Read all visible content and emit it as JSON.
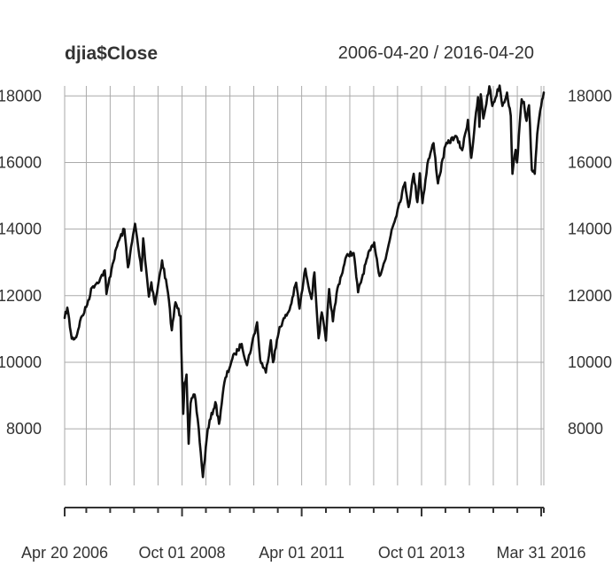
{
  "chart_data": {
    "type": "line",
    "title": "djia$Close",
    "subtitle": "2006-04-20 / 2016-04-20",
    "x_range": [
      "2006-04-20",
      "2016-04-20"
    ],
    "ylim": [
      6300,
      18300
    ],
    "grid": true,
    "y_ticks": [
      8000,
      10000,
      12000,
      14000,
      16000,
      18000
    ],
    "y_tick_labels_left": [
      "8000",
      "10000",
      "12000",
      "14000",
      "16000",
      "18000"
    ],
    "y_tick_labels_right": [
      "8000",
      "10000",
      "12000",
      "14000",
      "16000",
      "18000"
    ],
    "x_tick_labels": [
      {
        "date": "2006-04-20",
        "label": "Apr 20 2006"
      },
      {
        "date": "2008-10-01",
        "label": "Oct 01 2008"
      },
      {
        "date": "2011-04-01",
        "label": "Apr 01 2011"
      },
      {
        "date": "2013-10-01",
        "label": "Oct 01 2013"
      },
      {
        "date": "2016-03-31",
        "label": "Mar 31 2016"
      }
    ],
    "x_minor_ticks": [
      "2006-04-20",
      "2006-10-02",
      "2007-04-02",
      "2007-10-01",
      "2008-04-01",
      "2008-10-01",
      "2009-04-01",
      "2009-10-01",
      "2010-04-01",
      "2010-10-01",
      "2011-04-01",
      "2011-10-03",
      "2012-04-02",
      "2012-10-01",
      "2013-04-01",
      "2013-10-01",
      "2014-04-01",
      "2014-10-01",
      "2015-04-01",
      "2015-10-01",
      "2016-03-31",
      "2016-04-20"
    ],
    "series": [
      {
        "color": "#111111",
        "points": [
          [
            "2006-04-20",
            11330
          ],
          [
            "2006-05-10",
            11640
          ],
          [
            "2006-06-13",
            10710
          ],
          [
            "2006-07-17",
            10750
          ],
          [
            "2006-08-15",
            11230
          ],
          [
            "2006-10-02",
            11660
          ],
          [
            "2006-11-15",
            12250
          ],
          [
            "2007-01-15",
            12500
          ],
          [
            "2007-02-20",
            12760
          ],
          [
            "2007-03-05",
            12050
          ],
          [
            "2007-04-20",
            12950
          ],
          [
            "2007-06-01",
            13600
          ],
          [
            "2007-07-19",
            14000
          ],
          [
            "2007-08-16",
            12850
          ],
          [
            "2007-10-09",
            14160
          ],
          [
            "2007-11-26",
            12750
          ],
          [
            "2007-12-10",
            13720
          ],
          [
            "2008-01-22",
            11970
          ],
          [
            "2008-02-10",
            12400
          ],
          [
            "2008-03-10",
            11740
          ],
          [
            "2008-05-02",
            13060
          ],
          [
            "2008-06-15",
            12100
          ],
          [
            "2008-07-15",
            10960
          ],
          [
            "2008-08-12",
            11800
          ],
          [
            "2008-09-19",
            11390
          ],
          [
            "2008-10-10",
            8450
          ],
          [
            "2008-10-20",
            9380
          ],
          [
            "2008-11-04",
            9630
          ],
          [
            "2008-11-20",
            7550
          ],
          [
            "2008-12-05",
            8770
          ],
          [
            "2009-01-05",
            9030
          ],
          [
            "2009-02-05",
            8000
          ],
          [
            "2009-03-09",
            6550
          ],
          [
            "2009-04-15",
            8000
          ],
          [
            "2009-06-12",
            8800
          ],
          [
            "2009-07-10",
            8150
          ],
          [
            "2009-08-20",
            9400
          ],
          [
            "2009-10-19",
            10100
          ],
          [
            "2009-11-10",
            10250
          ],
          [
            "2009-12-30",
            10550
          ],
          [
            "2010-02-08",
            9910
          ],
          [
            "2010-04-26",
            11200
          ],
          [
            "2010-05-20",
            10070
          ],
          [
            "2010-07-02",
            9690
          ],
          [
            "2010-08-09",
            10660
          ],
          [
            "2010-08-26",
            10000
          ],
          [
            "2010-10-15",
            11060
          ],
          [
            "2010-12-30",
            11580
          ],
          [
            "2011-02-18",
            12390
          ],
          [
            "2011-03-16",
            11610
          ],
          [
            "2011-04-29",
            12810
          ],
          [
            "2011-06-15",
            11900
          ],
          [
            "2011-07-07",
            12700
          ],
          [
            "2011-08-08",
            10720
          ],
          [
            "2011-09-01",
            11500
          ],
          [
            "2011-10-03",
            10650
          ],
          [
            "2011-10-27",
            12200
          ],
          [
            "2011-11-25",
            11230
          ],
          [
            "2011-12-30",
            12220
          ],
          [
            "2012-03-15",
            13250
          ],
          [
            "2012-05-01",
            13280
          ],
          [
            "2012-06-04",
            12100
          ],
          [
            "2012-08-15",
            13160
          ],
          [
            "2012-10-05",
            13600
          ],
          [
            "2012-11-15",
            12590
          ],
          [
            "2012-12-31",
            13100
          ],
          [
            "2013-02-15",
            13980
          ],
          [
            "2013-04-01",
            14580
          ],
          [
            "2013-05-28",
            15400
          ],
          [
            "2013-06-24",
            14660
          ],
          [
            "2013-08-02",
            15660
          ],
          [
            "2013-08-30",
            14810
          ],
          [
            "2013-09-18",
            15680
          ],
          [
            "2013-10-08",
            14780
          ],
          [
            "2013-11-15",
            15960
          ],
          [
            "2013-12-31",
            16580
          ],
          [
            "2014-02-03",
            15370
          ],
          [
            "2014-04-01",
            16500
          ],
          [
            "2014-06-15",
            16800
          ],
          [
            "2014-08-07",
            16370
          ],
          [
            "2014-09-19",
            17280
          ],
          [
            "2014-10-15",
            16140
          ],
          [
            "2014-12-05",
            17960
          ],
          [
            "2014-12-16",
            17070
          ],
          [
            "2014-12-26",
            18050
          ],
          [
            "2015-01-15",
            17320
          ],
          [
            "2015-03-02",
            18290
          ],
          [
            "2015-03-25",
            17700
          ],
          [
            "2015-05-19",
            18310
          ],
          [
            "2015-06-10",
            17700
          ],
          [
            "2015-07-15",
            18100
          ],
          [
            "2015-08-12",
            17400
          ],
          [
            "2015-08-25",
            15660
          ],
          [
            "2015-09-18",
            16380
          ],
          [
            "2015-09-29",
            16000
          ],
          [
            "2015-11-03",
            17900
          ],
          [
            "2015-11-20",
            17820
          ],
          [
            "2015-12-10",
            17250
          ],
          [
            "2015-12-29",
            17720
          ],
          [
            "2016-01-20",
            15770
          ],
          [
            "2016-02-11",
            15660
          ],
          [
            "2016-03-01",
            16860
          ],
          [
            "2016-03-31",
            17690
          ],
          [
            "2016-04-20",
            18100
          ]
        ]
      }
    ]
  }
}
